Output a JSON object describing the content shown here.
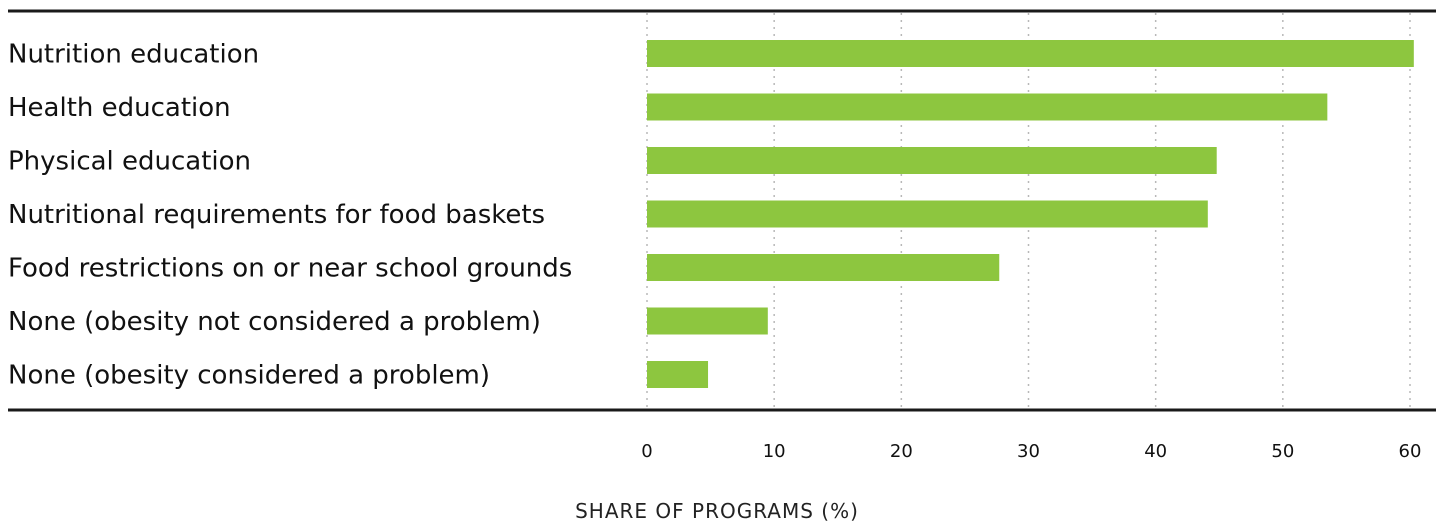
{
  "chart_data": {
    "type": "bar",
    "orientation": "horizontal",
    "categories": [
      "Nutrition education",
      "Health education",
      "Physical education",
      "Nutritional requirements for food baskets",
      "Food restrictions on or near school grounds",
      "None (obesity not considered a problem)",
      "None (obesity considered a problem)"
    ],
    "values": [
      60.3,
      53.5,
      44.8,
      44.1,
      27.7,
      9.5,
      4.8
    ],
    "xlabel": "SHARE OF PROGRAMS (%)",
    "ylabel": "",
    "xlim": [
      0,
      60
    ],
    "xticks": [
      "0",
      "10",
      "20",
      "30",
      "40",
      "50",
      "60"
    ],
    "grid": "vertical dotted",
    "bar_color": "#8dc63f"
  }
}
